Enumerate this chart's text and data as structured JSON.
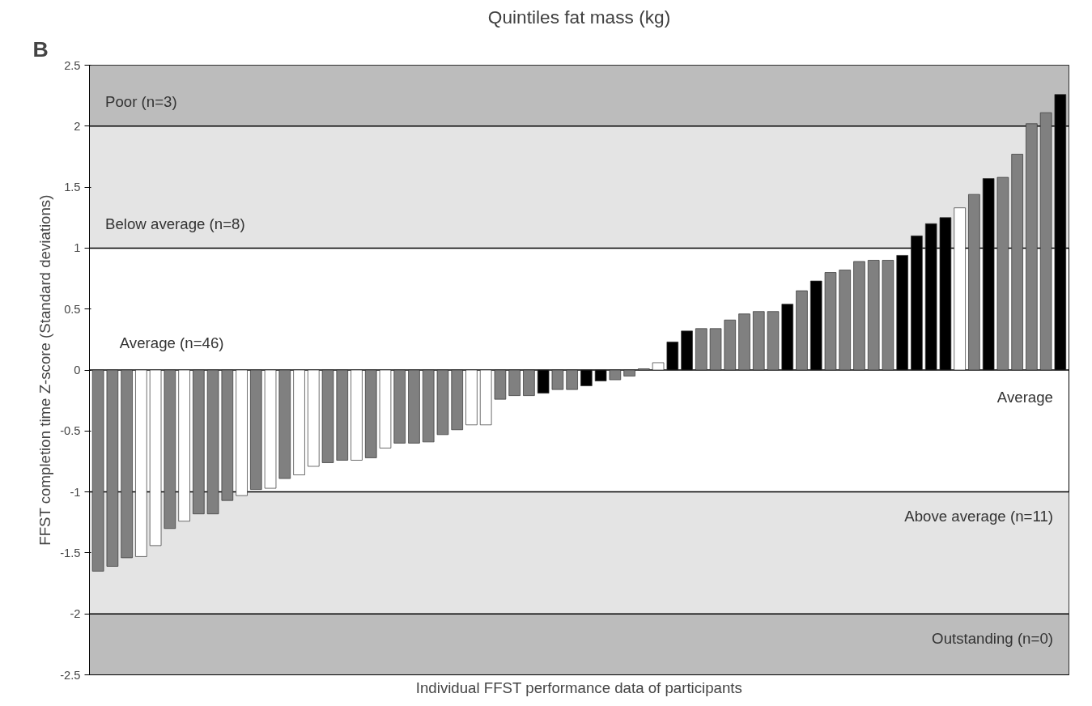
{
  "chart_data": {
    "type": "bar",
    "title": "Quintiles fat mass (kg)",
    "xlabel": "Individual FFST performance data of participants",
    "ylabel": "FFST completion time Z-score (Standard deviations)",
    "categories": [
      null,
      null,
      null,
      null,
      null,
      null,
      null,
      null,
      null,
      null,
      null,
      null,
      null,
      null,
      null,
      null,
      null,
      null,
      null,
      null,
      null,
      null,
      null,
      null,
      null,
      null,
      null,
      null,
      null,
      null,
      null,
      null,
      null,
      null,
      null,
      null,
      null,
      null,
      null,
      null,
      null,
      null,
      null,
      null,
      null,
      null,
      null,
      null,
      null,
      null,
      null,
      null,
      null,
      null,
      null,
      null,
      null,
      null,
      null,
      null,
      null,
      null,
      null,
      null,
      null,
      null,
      null,
      null
    ],
    "values": [
      -1.65,
      -1.61,
      -1.54,
      -1.53,
      -1.44,
      -1.3,
      -1.24,
      -1.18,
      -1.18,
      -1.07,
      -1.03,
      -0.98,
      -0.97,
      -0.89,
      -0.86,
      -0.79,
      -0.76,
      -0.74,
      -0.74,
      -0.72,
      -0.64,
      -0.6,
      -0.6,
      -0.59,
      -0.53,
      -0.49,
      -0.45,
      -0.45,
      -0.24,
      -0.21,
      -0.21,
      -0.19,
      -0.16,
      -0.16,
      -0.13,
      -0.09,
      -0.08,
      -0.05,
      0.01,
      0.06,
      0.23,
      0.32,
      0.34,
      0.34,
      0.41,
      0.46,
      0.48,
      0.48,
      0.54,
      0.65,
      0.73,
      0.8,
      0.82,
      0.89,
      0.9,
      0.9,
      0.94,
      1.1,
      1.2,
      1.25,
      1.33,
      1.44,
      1.57,
      1.58,
      1.77,
      2.02,
      2.11,
      2.26
    ],
    "colors": [
      "#808080",
      "#808080",
      "#808080",
      "#ffffff",
      "#ffffff",
      "#808080",
      "#ffffff",
      "#808080",
      "#808080",
      "#808080",
      "#ffffff",
      "#808080",
      "#ffffff",
      "#808080",
      "#ffffff",
      "#ffffff",
      "#808080",
      "#808080",
      "#ffffff",
      "#808080",
      "#ffffff",
      "#808080",
      "#808080",
      "#808080",
      "#808080",
      "#808080",
      "#ffffff",
      "#ffffff",
      "#808080",
      "#808080",
      "#808080",
      "#000000",
      "#808080",
      "#808080",
      "#000000",
      "#000000",
      "#808080",
      "#808080",
      "#808080",
      "#ffffff",
      "#000000",
      "#000000",
      "#808080",
      "#808080",
      "#808080",
      "#808080",
      "#808080",
      "#808080",
      "#000000",
      "#808080",
      "#000000",
      "#808080",
      "#808080",
      "#808080",
      "#808080",
      "#808080",
      "#000000",
      "#000000",
      "#000000",
      "#000000",
      "#ffffff",
      "#808080",
      "#000000",
      "#808080",
      "#808080",
      "#808080",
      "#808080",
      "#000000"
    ],
    "ylim": [
      -2.5,
      2.5
    ],
    "yticks": [
      -2.5,
      -2,
      -1.5,
      -1,
      -0.5,
      0,
      0.5,
      1,
      1.5,
      2,
      2.5
    ],
    "bands": [
      {
        "axis": "y",
        "from": 2,
        "to": 2.5,
        "label": "Poor (n=3)",
        "color": "#bcbcbc"
      },
      {
        "axis": "y",
        "from": 1,
        "to": 2,
        "label": "Below average (n=8)",
        "color": "#e4e4e4"
      },
      {
        "axis": "y",
        "from": -2,
        "to": -1,
        "label": "Above average (n=11)",
        "color": "#e4e4e4"
      },
      {
        "axis": "y",
        "from": -2.5,
        "to": -2,
        "label": "Outstanding (n=0)",
        "color": "#bcbcbc"
      }
    ],
    "ref_lines": [
      {
        "axis": "y",
        "value": 2,
        "color": "#000000"
      },
      {
        "axis": "y",
        "value": 1,
        "color": "#000000"
      },
      {
        "axis": "y",
        "value": 0,
        "color": "#000000"
      },
      {
        "axis": "y",
        "value": -1,
        "color": "#000000"
      },
      {
        "axis": "y",
        "value": -2,
        "color": "#000000"
      }
    ],
    "annotations": [
      "B",
      "Average (n=46)",
      "Average"
    ],
    "grid": false
  }
}
